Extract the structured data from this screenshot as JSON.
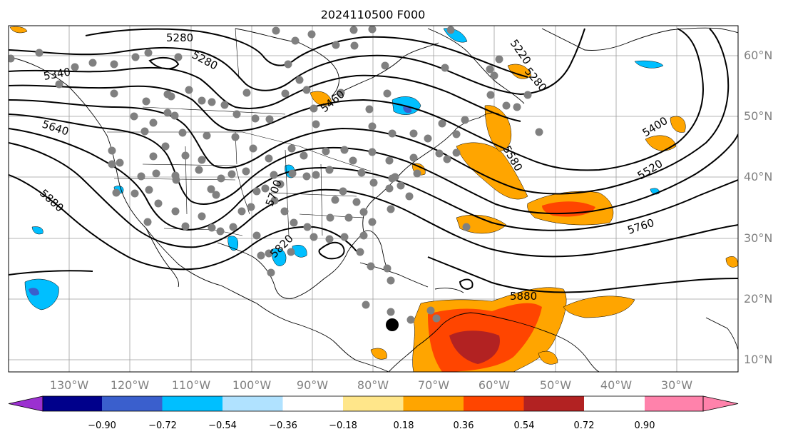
{
  "title": "2024110500 F000",
  "map": {
    "lon_range": [
      -140,
      -22
    ],
    "lat_range": [
      8,
      65
    ],
    "longitude_labels": [
      "130°W",
      "120°W",
      "110°W",
      "100°W",
      "90°W",
      "80°W",
      "70°W",
      "60°W",
      "50°W",
      "40°W",
      "30°W"
    ],
    "latitude_labels": [
      "60°N",
      "50°N",
      "40°N",
      "30°N",
      "20°N",
      "10°N"
    ],
    "gridlines": true,
    "height_contour_labels": [
      "5280",
      "5280",
      "5220",
      "5280",
      "5340",
      "5460",
      "5640",
      "5880",
      "5400",
      "5520",
      "5580",
      "5760",
      "5700",
      "5820",
      "5880"
    ],
    "storm_marker": "black-dot-caribbean",
    "station_marker_color": "#808080"
  },
  "colorbar": {
    "tick_labels": [
      "−0.90",
      "−0.72",
      "−0.54",
      "−0.36",
      "−0.18",
      "0.18",
      "0.36",
      "0.54",
      "0.72",
      "0.90"
    ],
    "colors": [
      "#9b30d0",
      "#00008b",
      "#3a5fcd",
      "#00bfff",
      "#b0e2ff",
      "#ffffff",
      "#ffe68a",
      "#ffa500",
      "#ff4500",
      "#b22222",
      "#ff82ab"
    ],
    "extend": "both"
  }
}
